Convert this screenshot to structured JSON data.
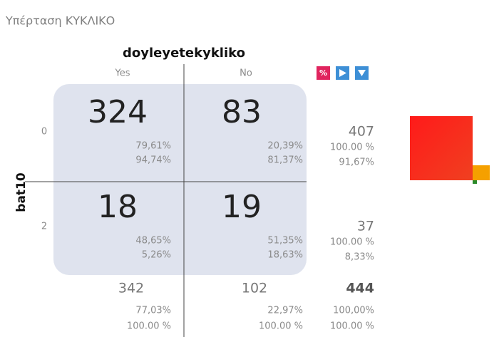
{
  "title": "Υπέρταση ΚΥΚΛΙΚΟ",
  "column_variable": "doyleyetekykliko",
  "row_variable": "bat10",
  "toolbar": {
    "percent_button": "%"
  },
  "columns": [
    "Yes",
    "No"
  ],
  "rows": [
    {
      "label": "0",
      "cells": [
        {
          "count": "324",
          "row_pct": "79,61%",
          "col_pct": "94,74%"
        },
        {
          "count": "83",
          "row_pct": "20,39%",
          "col_pct": "81,37%"
        }
      ],
      "total": {
        "count": "407",
        "row_pct": "100.00 %",
        "col_pct": "91,67%"
      }
    },
    {
      "label": "2",
      "cells": [
        {
          "count": "18",
          "row_pct": "48,65%",
          "col_pct": "5,26%"
        },
        {
          "count": "19",
          "row_pct": "51,35%",
          "col_pct": "18,63%"
        }
      ],
      "total": {
        "count": "37",
        "row_pct": "100.00 %",
        "col_pct": "8,33%"
      }
    }
  ],
  "column_totals": [
    {
      "count": "342",
      "row_pct": "77,03%",
      "col_pct": "100.00 %"
    },
    {
      "count": "102",
      "row_pct": "22,97%",
      "col_pct": "100.00 %"
    }
  ],
  "grand_total": {
    "count": "444",
    "row_pct": "100,00%",
    "col_pct": "100.00 %"
  }
}
